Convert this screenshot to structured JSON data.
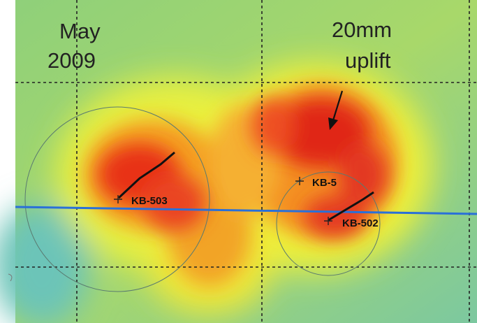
{
  "date_label": {
    "lines": [
      "May",
      "2009"
    ]
  },
  "uplift_label": {
    "lines": [
      "20mm",
      "uplift"
    ]
  },
  "wells": [
    {
      "label": "KB-503"
    },
    {
      "label": "KB-5"
    },
    {
      "label": "KB-502"
    }
  ]
}
